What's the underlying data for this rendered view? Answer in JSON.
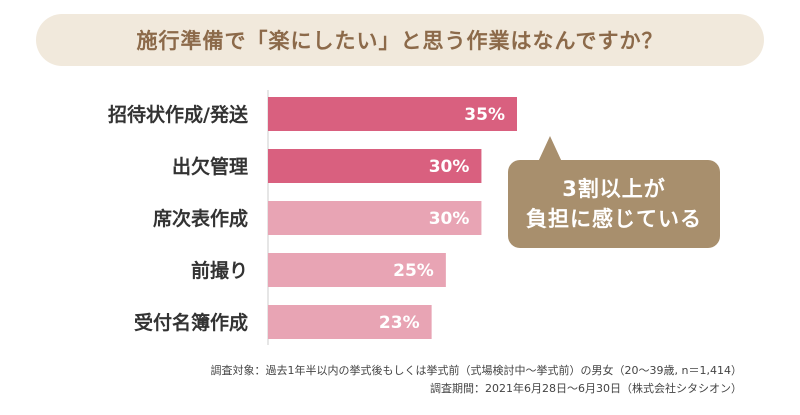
{
  "title": "施行準備で「楽にしたい」と思う作業はなんですか？",
  "callout": {
    "line1": "3割以上が",
    "line2": "負担に感じている"
  },
  "notes": {
    "subjects": "調査対象：過去1年半以内の挙式後もしくは挙式前（式場検討中～挙式前）の男女（20～39歳, n＝1,414）",
    "period": "調査期間：2021年6月28日～6月30日（株式会社シタシオン）"
  },
  "colors": {
    "title_bg": "#f1e9dc",
    "title_text": "#8c6a4a",
    "bar_dark": "#d9607f",
    "bar_light": "#e8a4b4",
    "callout_bg": "#a88f6d"
  },
  "chart_data": {
    "type": "bar",
    "orientation": "horizontal",
    "categories": [
      "招待状作成/発送",
      "出欠管理",
      "席次表作成",
      "前撮り",
      "受付名簿作成"
    ],
    "values": [
      35,
      30,
      30,
      25,
      23
    ],
    "value_labels": [
      "35%",
      "30%",
      "30%",
      "25%",
      "23%"
    ],
    "bar_colors": [
      "#d9607f",
      "#d9607f",
      "#e8a4b4",
      "#e8a4b4",
      "#e8a4b4"
    ],
    "xlim": [
      0,
      35
    ],
    "grid": false,
    "legend": "none"
  }
}
